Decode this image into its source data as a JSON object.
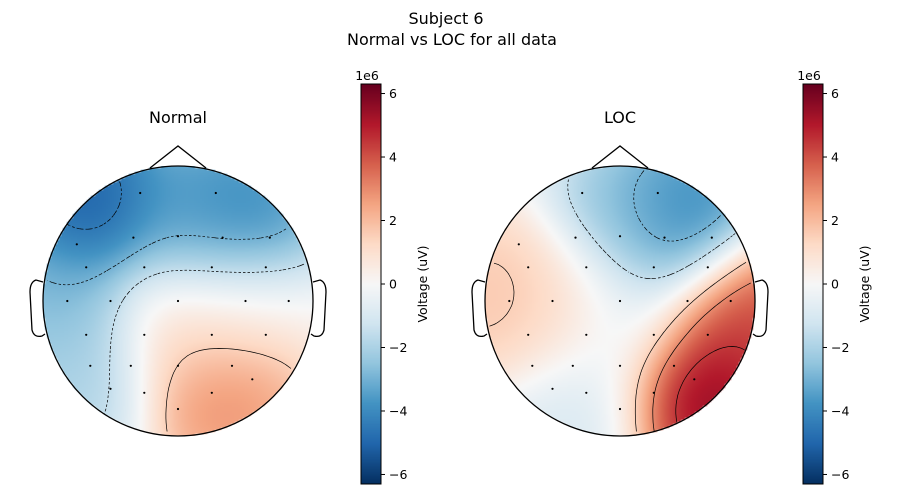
{
  "figure": {
    "title_line1": "Subject 6",
    "title_line2": "Normal vs LOC for all data"
  },
  "chart_data": [
    {
      "type": "heatmap",
      "subtype": "eeg-topomap",
      "title": "Normal",
      "colormap": "RdBu_r",
      "contours": true,
      "sensor_markers": true,
      "colorbar": {
        "label": "Voltage (uV)",
        "offset_text": "1e6",
        "range": [
          -6.3,
          6.3
        ],
        "ticks": [
          -6,
          -4,
          -2,
          0,
          2,
          4,
          6
        ],
        "tick_labels": [
          "−6",
          "−4",
          "−2",
          "0",
          "2",
          "4",
          "6"
        ]
      },
      "field_blobs": [
        {
          "region": "front-left",
          "value": -6.0
        },
        {
          "region": "frontal-center",
          "value": -3.5
        },
        {
          "region": "frontal-right",
          "value": -4.8
        },
        {
          "region": "left-temporal",
          "value": -3.2
        },
        {
          "region": "left-posterior",
          "value": -2.2
        },
        {
          "region": "center",
          "value": 1.2
        },
        {
          "region": "posterior-center",
          "value": 3.5
        },
        {
          "region": "right-central",
          "value": 0.2
        }
      ]
    },
    {
      "type": "heatmap",
      "subtype": "eeg-topomap",
      "title": "LOC",
      "colormap": "RdBu_r",
      "contours": true,
      "sensor_markers": true,
      "colorbar": {
        "label": "Voltage (uV)",
        "offset_text": "1e6",
        "range": [
          -6.3,
          6.3
        ],
        "ticks": [
          -6,
          -4,
          -2,
          0,
          2,
          4,
          6
        ],
        "tick_labels": [
          "−6",
          "−4",
          "−2",
          "0",
          "2",
          "4",
          "6"
        ]
      },
      "field_blobs": [
        {
          "region": "frontal-right",
          "value": -5.0
        },
        {
          "region": "frontal-center",
          "value": -2.5
        },
        {
          "region": "left-temporal",
          "value": 2.0
        },
        {
          "region": "left-central",
          "value": 1.5
        },
        {
          "region": "center",
          "value": -0.8
        },
        {
          "region": "right-temporal",
          "value": 4.8
        },
        {
          "region": "posterior-right",
          "value": 6.5
        },
        {
          "region": "posterior-left",
          "value": -1.2
        }
      ]
    }
  ]
}
